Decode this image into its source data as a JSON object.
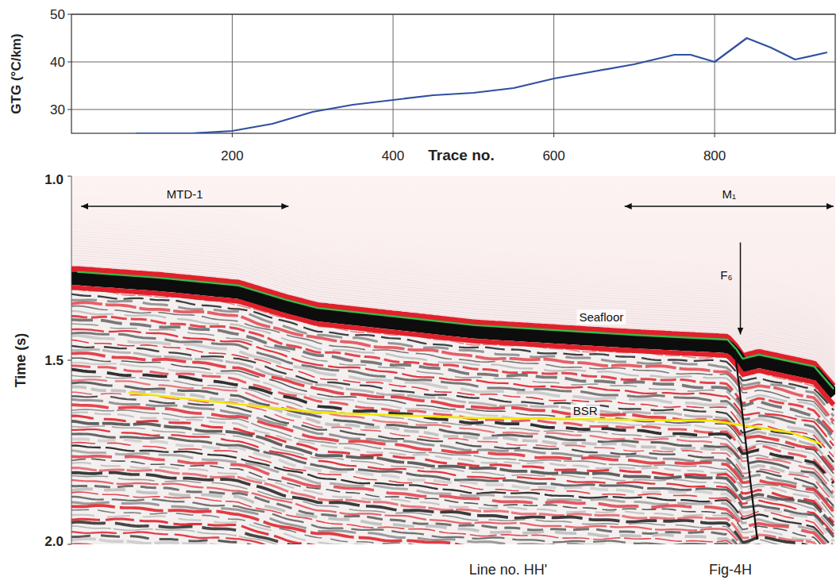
{
  "chart_data": [
    {
      "type": "line",
      "ylabel": "GTG (°C/km)",
      "xlabel": "Trace no.",
      "x": [
        80,
        150,
        200,
        250,
        300,
        350,
        400,
        450,
        500,
        550,
        600,
        650,
        700,
        750,
        770,
        800,
        840,
        870,
        900,
        940
      ],
      "series": [
        {
          "color": "#2f4fa0",
          "values": [
            25,
            25,
            25.5,
            27,
            29.5,
            31,
            32,
            33,
            33.5,
            34.5,
            36.5,
            38,
            39.5,
            41.5,
            41.5,
            40,
            45,
            43,
            40.5,
            42
          ]
        }
      ],
      "xlim": [
        0,
        950
      ],
      "xticks": [
        200,
        400,
        600,
        800
      ],
      "ylim": [
        25,
        50
      ],
      "yticks": [
        30,
        40,
        50
      ],
      "grid": true
    },
    {
      "type": "line",
      "ylabel": "Time (s)",
      "series": [
        {
          "name": "Seafloor",
          "color": "#3cb84a",
          "label_at": [
            659,
            1.384
          ],
          "x": [
            7,
            110,
            208,
            267,
            306,
            502,
            698,
            816,
            827,
            835,
            855,
            924,
            948
          ],
          "values": [
            1.26,
            1.276,
            1.297,
            1.336,
            1.358,
            1.405,
            1.431,
            1.444,
            1.47,
            1.496,
            1.485,
            1.517,
            1.578
          ]
        },
        {
          "name": "BSR",
          "color": "#f2e600",
          "label_at": [
            639,
            1.638
          ],
          "x": [
            71,
            306,
            502,
            796,
            894,
            933
          ],
          "values": [
            1.588,
            1.642,
            1.657,
            1.664,
            1.696,
            1.728
          ]
        },
        {
          "color": "#111111",
          "x": [
            825,
            853
          ],
          "values": [
            1.47,
            1.987
          ]
        }
      ],
      "annotations": [
        {
          "text": "MTD-1",
          "x": [
            12,
            270
          ],
          "y": 1.082
        },
        {
          "text": "M₁",
          "x": [
            688,
            948
          ],
          "y": 1.082
        },
        {
          "text": "F₆",
          "x": 832,
          "y": [
            1.18,
            1.43
          ]
        }
      ],
      "footer": [
        "Line no. HH'",
        "Fig-4H"
      ],
      "xlim": [
        0,
        950
      ],
      "ylim": [
        1,
        2
      ],
      "yticks": [
        {
          "value": 1,
          "label": "1.0"
        },
        1.5,
        {
          "value": 2,
          "label": "2.0"
        }
      ],
      "tick_labels": "y"
    }
  ]
}
